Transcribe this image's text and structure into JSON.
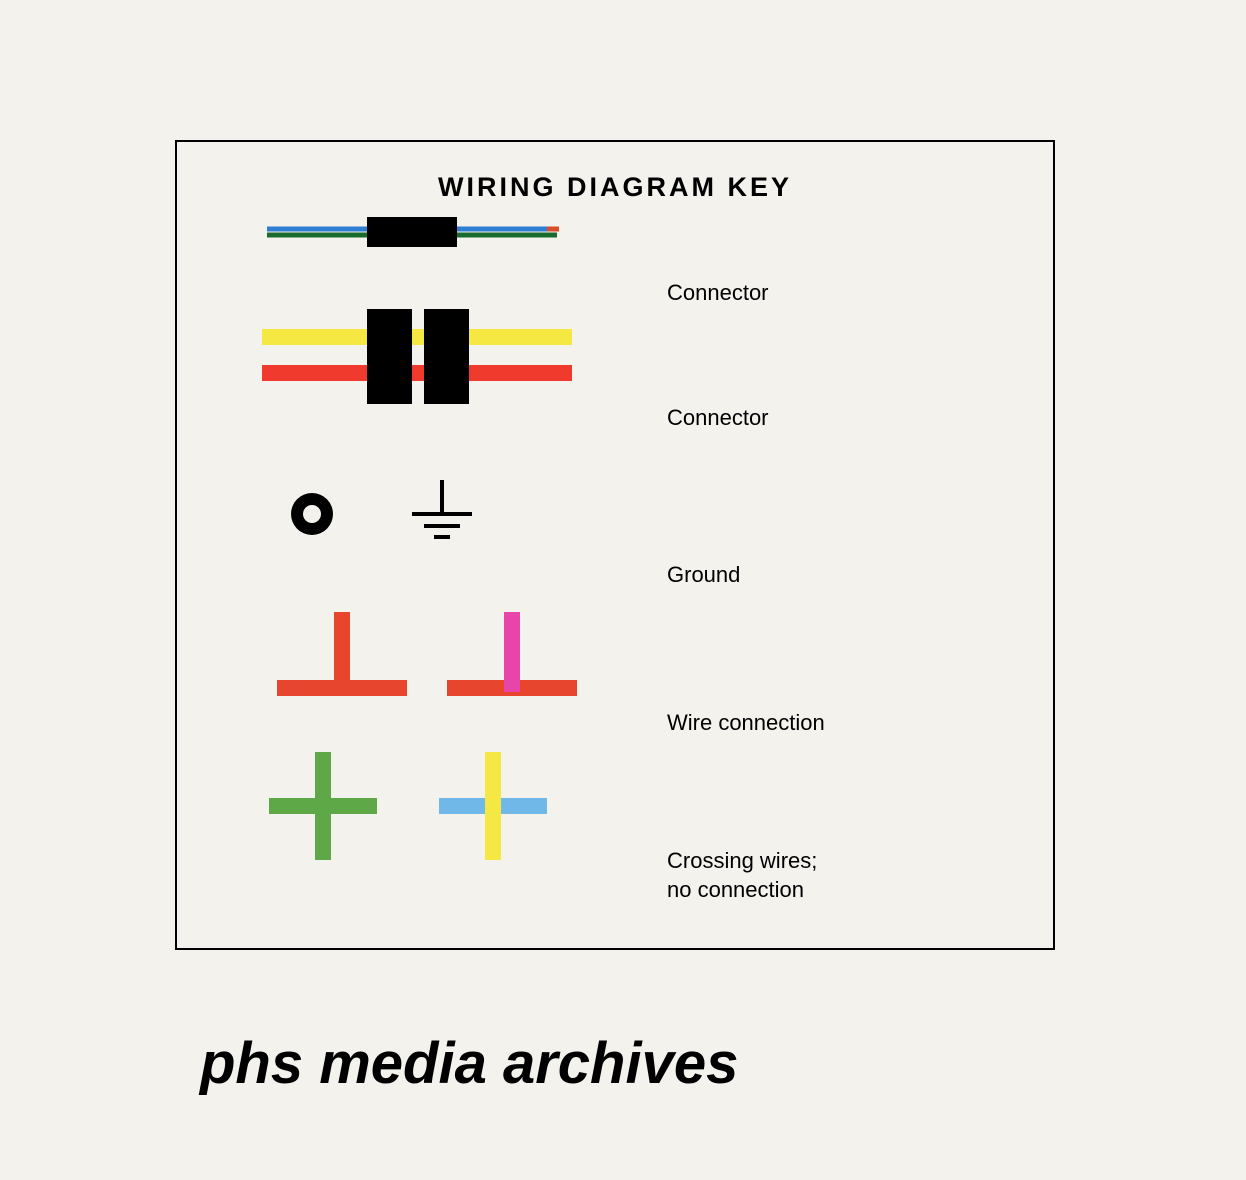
{
  "title": "WIRING  DIAGRAM  KEY",
  "watermark": "phs media archives",
  "background_color": "#f4f2ed",
  "border_color": "#000000",
  "rows": [
    {
      "label": "Connector",
      "type": "single-connector",
      "colors": {
        "line_top": "#2e7fd4",
        "line_bottom": "#1a6b2e",
        "block": "#000000",
        "accent_right": "#d94e2a"
      },
      "line_thickness": 5,
      "block_width": 90,
      "block_height": 30,
      "total_width": 280
    },
    {
      "label": "Connector",
      "type": "double-connector",
      "colors": {
        "top_line": "#f5e842",
        "bottom_line": "#f03a2e",
        "block": "#000000"
      },
      "line_thickness": 14,
      "gap_between_lines": 18,
      "block_width": 45,
      "block_height": 95,
      "block_gap": 12,
      "total_width": 310
    },
    {
      "label": "Ground",
      "type": "ground",
      "colors": {
        "symbol": "#000000"
      },
      "circle_outer": 42,
      "circle_inner": 18,
      "ground_line_width": 4
    },
    {
      "label": "Wire connection",
      "type": "wire-connection",
      "colors": {
        "horizontal1": "#e8452f",
        "vertical1": "#e8452f",
        "horizontal2": "#e8452f",
        "vertical2": "#e845a8"
      },
      "line_thickness": 16,
      "horizontal_length": 130,
      "vertical_length": 75
    },
    {
      "label": "Crossing wires; no connection",
      "type": "crossing-wires",
      "colors": {
        "horizontal1": "#5fa847",
        "vertical1": "#5fa847",
        "horizontal2": "#6fb8e8",
        "vertical2": "#f5e842"
      },
      "line_thickness": 16,
      "length": 110
    }
  ]
}
